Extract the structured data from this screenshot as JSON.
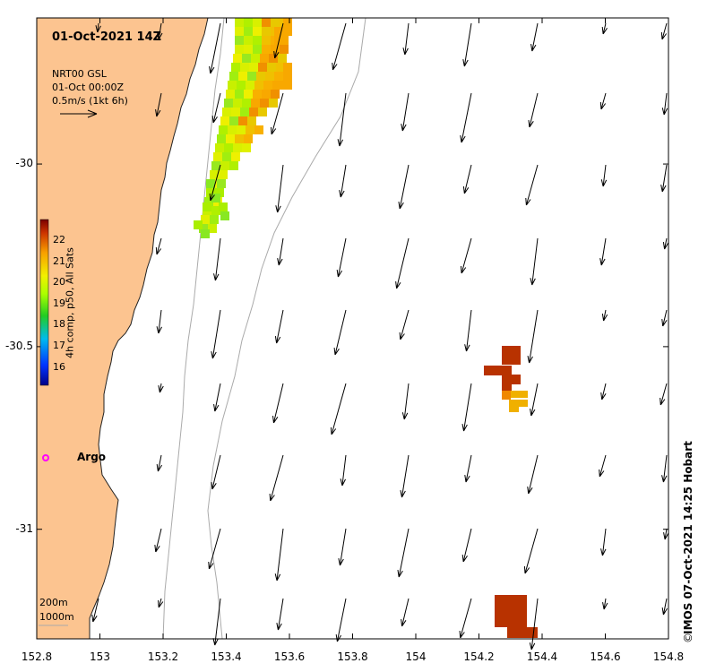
{
  "title": "01-Oct-2021 14Z",
  "legend": {
    "product": "NRT00 GSL",
    "time": "01-Oct 00:00Z",
    "scale": "0.5m/s (1kt 6h)"
  },
  "colorbar": {
    "label": "4h comp, p50, All Sats",
    "ticks": [
      "22",
      "21",
      "20",
      "19",
      "18",
      "17",
      "16"
    ]
  },
  "argo": {
    "label": "Argo",
    "color": "#ff00ff"
  },
  "depth_contours": {
    "shallow": "200m",
    "deep": "1000m"
  },
  "credit": "IMOS 07-Oct-2021 14:25 Hobart",
  "copyright": "©",
  "axes": {
    "x_ticks": [
      "152.8",
      "153",
      "153.2",
      "153.4",
      "153.6",
      "153.8",
      "154",
      "154.2",
      "154.4",
      "154.6",
      "154.8"
    ],
    "y_ticks": [
      "-30",
      "-30.5",
      "-31"
    ],
    "xlim": [
      152.8,
      154.8
    ],
    "ylim": [
      -31.3,
      -29.6
    ]
  },
  "colors": {
    "land": "#fcc490",
    "land_edge": "#222222",
    "contour": "#aaaaaa",
    "arrow": "#000000",
    "sst_high": "#b83200",
    "sst_mid": "#f0a800",
    "sst_low": "#88ff22"
  }
}
